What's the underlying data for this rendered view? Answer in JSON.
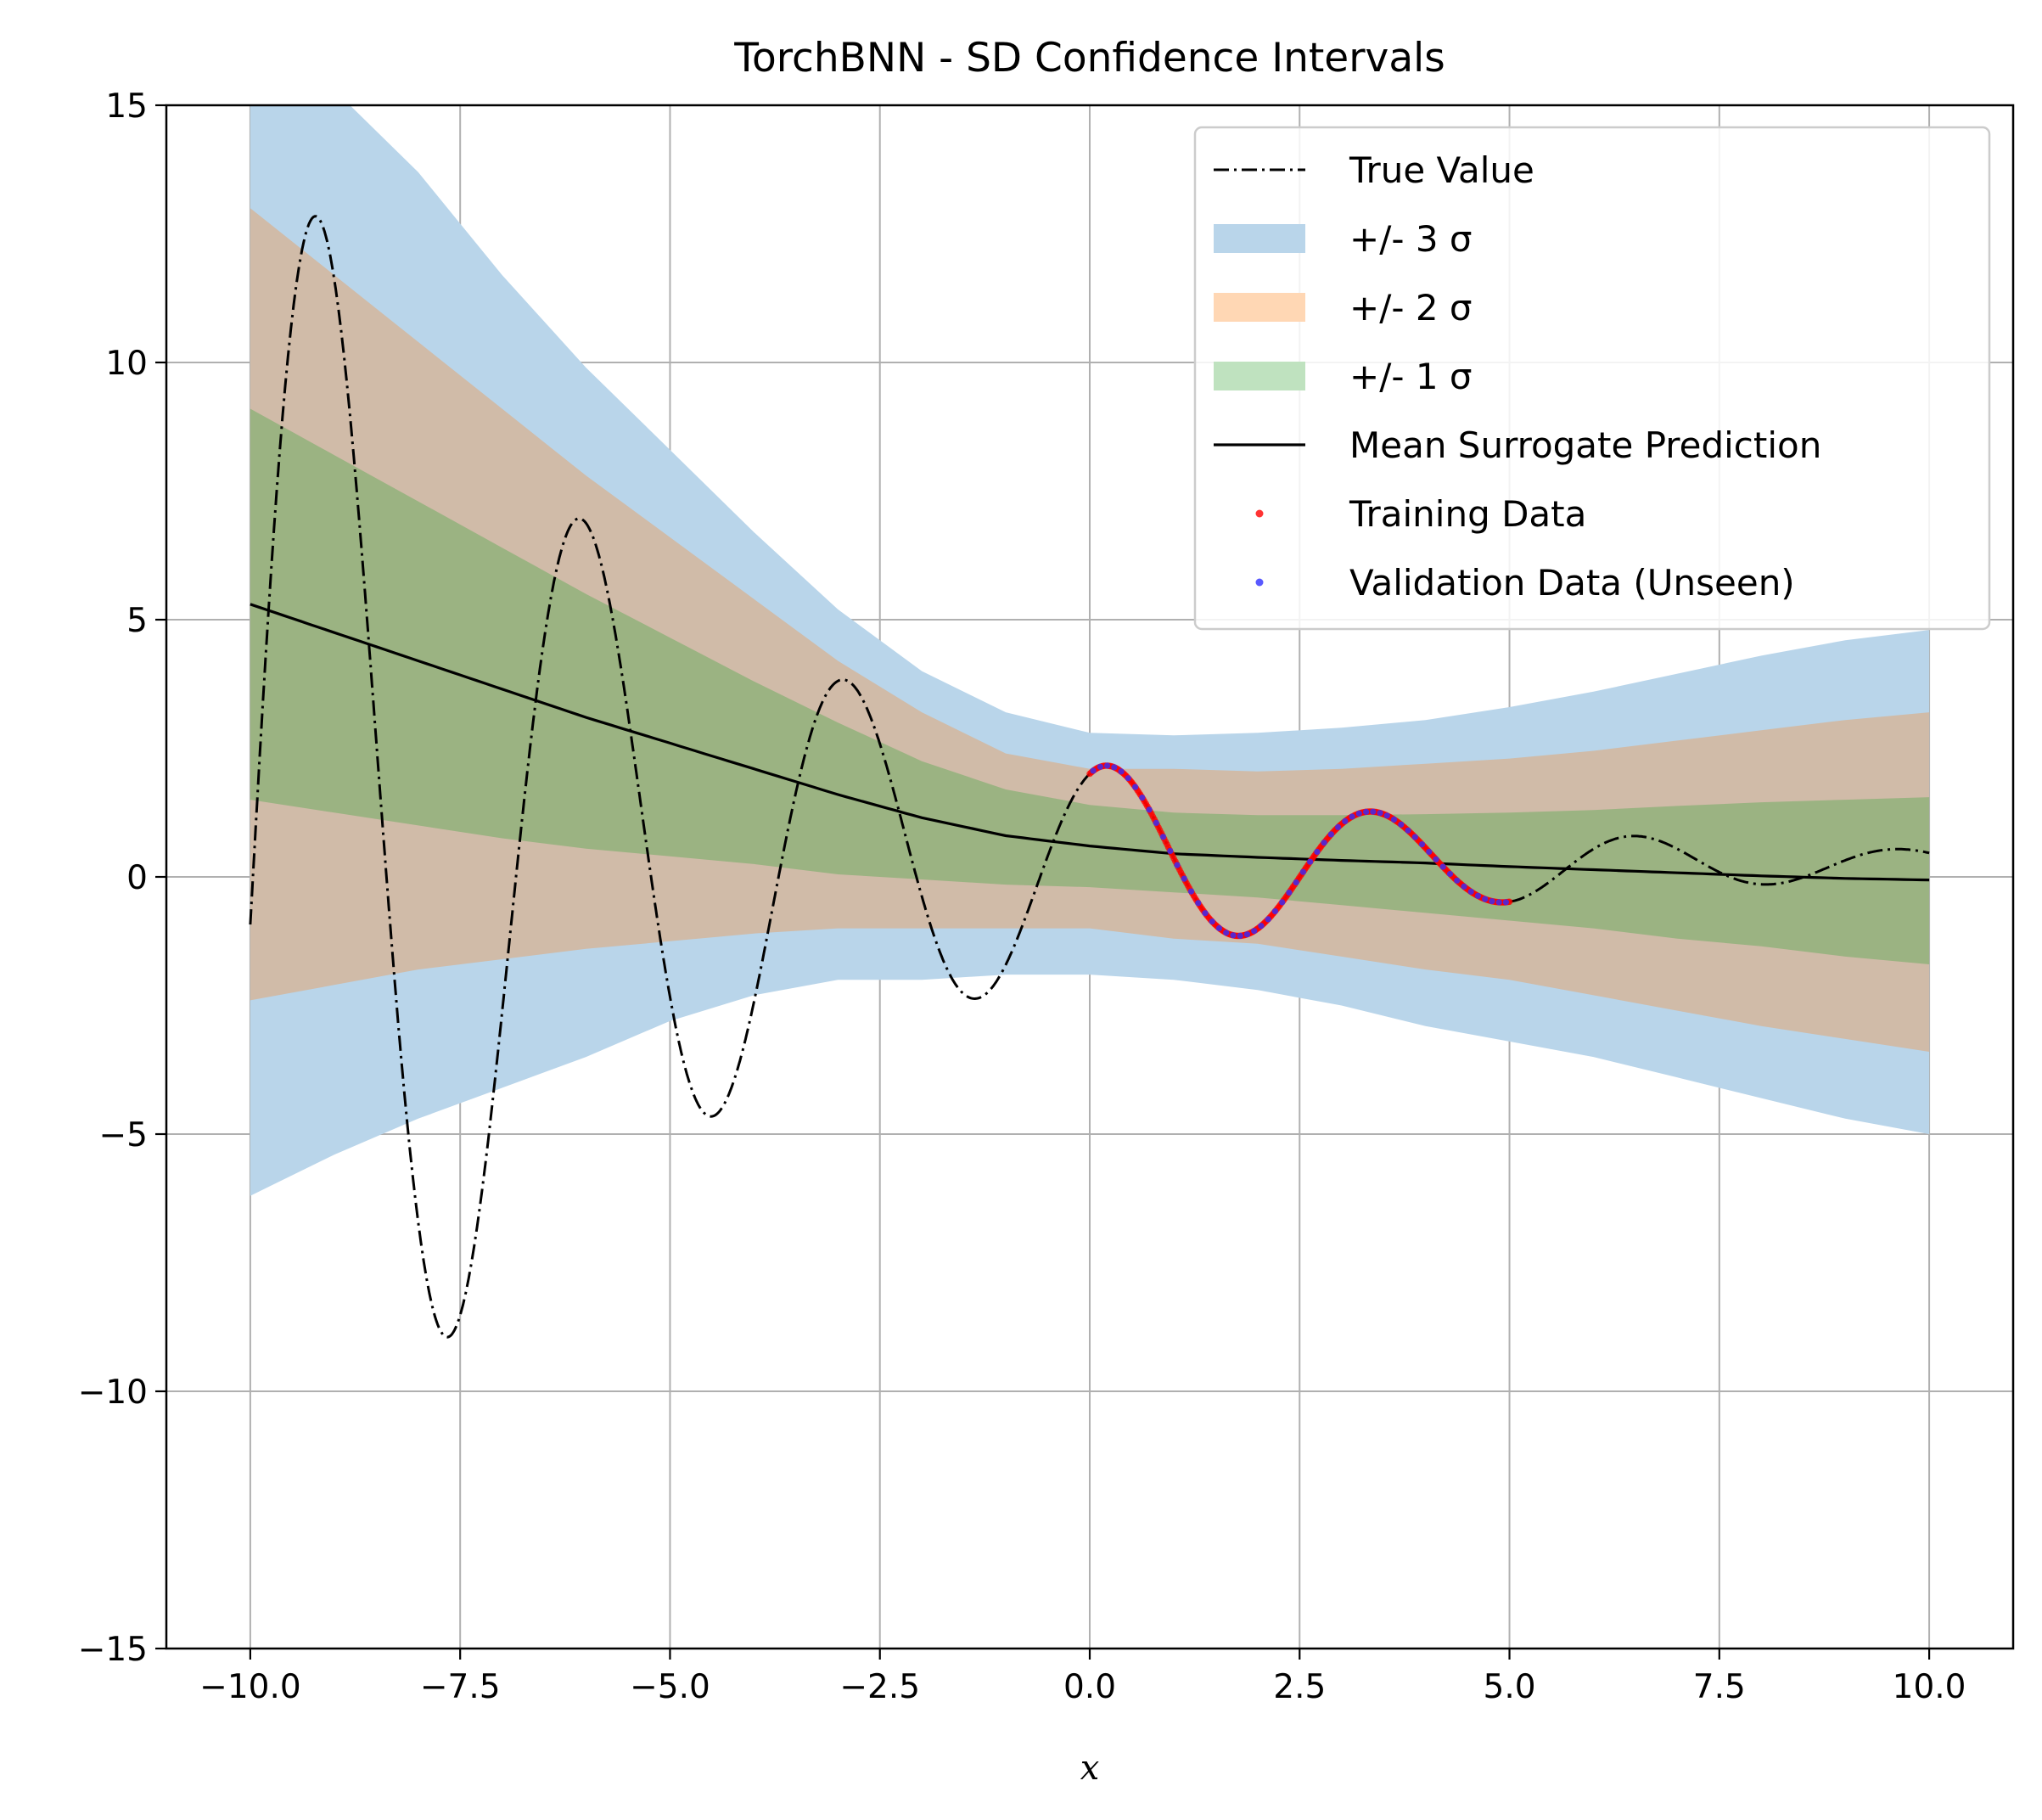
{
  "chart_data": {
    "type": "line",
    "title": "TorchBNN - SD Confidence Intervals",
    "xlabel": "x",
    "ylabel": "",
    "xlim": [
      -11,
      11
    ],
    "ylim": [
      -15,
      15
    ],
    "xticks": [
      -10.0,
      -7.5,
      -5.0,
      -2.5,
      0.0,
      2.5,
      5.0,
      7.5,
      10.0
    ],
    "xtick_labels": [
      "−10.0",
      "−7.5",
      "−5.0",
      "−2.5",
      "0.0",
      "2.5",
      "5.0",
      "7.5",
      "10.0"
    ],
    "yticks": [
      -15,
      -10,
      -5,
      0,
      5,
      10,
      15
    ],
    "ytick_labels": [
      "−15",
      "−10",
      "−5",
      "0",
      "5",
      "10",
      "15"
    ],
    "grid": true,
    "legend_position": "top-right",
    "x": [
      -10,
      -9,
      -8,
      -7,
      -6,
      -5,
      -4,
      -3,
      -2,
      -1,
      0,
      1,
      2,
      3,
      4,
      5,
      6,
      7,
      8,
      9,
      10
    ],
    "mean": [
      5.3,
      4.75,
      4.2,
      3.65,
      3.1,
      2.6,
      2.1,
      1.6,
      1.15,
      0.8,
      0.6,
      0.45,
      0.38,
      0.32,
      0.27,
      0.2,
      0.14,
      0.08,
      0.02,
      -0.03,
      -0.06
    ],
    "band_1sigma": {
      "upper": [
        9.1,
        8.2,
        7.3,
        6.4,
        5.5,
        4.65,
        3.8,
        3.0,
        2.25,
        1.7,
        1.4,
        1.25,
        1.2,
        1.2,
        1.22,
        1.25,
        1.3,
        1.38,
        1.45,
        1.5,
        1.55
      ],
      "lower": [
        1.5,
        1.25,
        1.0,
        0.75,
        0.55,
        0.4,
        0.25,
        0.05,
        -0.05,
        -0.15,
        -0.2,
        -0.3,
        -0.4,
        -0.55,
        -0.7,
        -0.85,
        -1.0,
        -1.2,
        -1.35,
        -1.55,
        -1.7
      ]
    },
    "band_2sigma": {
      "upper": [
        13.0,
        11.7,
        10.4,
        9.1,
        7.8,
        6.6,
        5.4,
        4.2,
        3.2,
        2.4,
        2.1,
        2.1,
        2.05,
        2.1,
        2.2,
        2.3,
        2.45,
        2.65,
        2.85,
        3.05,
        3.2
      ],
      "lower": [
        -2.4,
        -2.1,
        -1.8,
        -1.6,
        -1.4,
        -1.25,
        -1.1,
        -1.0,
        -1.0,
        -1.0,
        -1.0,
        -1.2,
        -1.3,
        -1.55,
        -1.8,
        -2.0,
        -2.3,
        -2.6,
        -2.9,
        -3.15,
        -3.4
      ]
    },
    "band_3sigma": {
      "upper": [
        17.0,
        15.3,
        13.7,
        11.7,
        9.9,
        8.3,
        6.7,
        5.2,
        4.0,
        3.2,
        2.8,
        2.75,
        2.8,
        2.9,
        3.05,
        3.3,
        3.6,
        3.95,
        4.3,
        4.6,
        4.8
      ],
      "lower": [
        -6.2,
        -5.4,
        -4.7,
        -4.1,
        -3.5,
        -2.8,
        -2.3,
        -2.0,
        -2.0,
        -1.9,
        -1.9,
        -2.0,
        -2.2,
        -2.5,
        -2.9,
        -3.2,
        -3.5,
        -3.9,
        -4.3,
        -4.7,
        -5.0
      ]
    },
    "true_function": {
      "xmin": -10,
      "xmax": 10,
      "samples": 1200
    },
    "training_data": {
      "xmin": 0,
      "xmax": 5,
      "count": 300
    },
    "validation_data": {
      "xmin": 0,
      "xmax": 5,
      "count": 60
    },
    "colors": {
      "band_3sigma": "#b9d5ea",
      "band_2sigma": "#d0bba8",
      "band_1sigma": "#9bb382",
      "legend_3sigma": "#b9d5ea",
      "legend_2sigma": "#ffd7b4",
      "legend_1sigma": "#bfe2bf",
      "mean": "#000000",
      "true": "#000000",
      "training": "#ff0000",
      "validation": "#3030ff",
      "grid": "#b0b0b0"
    },
    "legend": [
      {
        "key": "true",
        "label": "True Value"
      },
      {
        "key": "band3",
        "label": "+/- 3 σ"
      },
      {
        "key": "band2",
        "label": "+/- 2 σ"
      },
      {
        "key": "band1",
        "label": "+/- 1 σ"
      },
      {
        "key": "mean",
        "label": "Mean Surrogate Prediction"
      },
      {
        "key": "training",
        "label": "Training Data"
      },
      {
        "key": "validation",
        "label": "Validation Data (Unseen)"
      }
    ]
  }
}
